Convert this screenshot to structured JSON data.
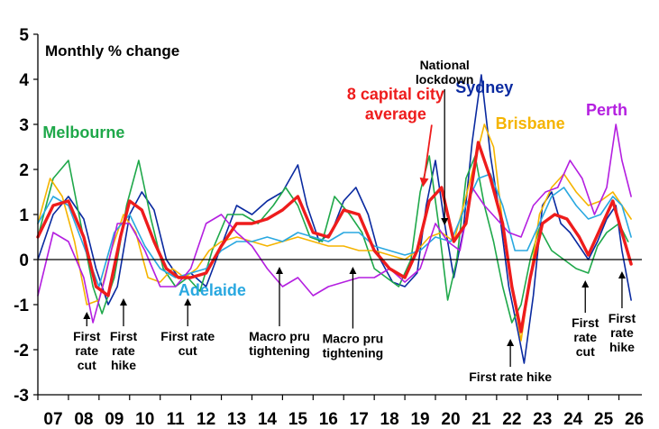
{
  "chart_data": {
    "type": "line",
    "title": "Monthly % change",
    "ylim": [
      -3,
      5
    ],
    "yticks": [
      5,
      4,
      3,
      2,
      1,
      0,
      -1,
      -2,
      -3
    ],
    "xlim": [
      2007.0,
      2026.75
    ],
    "xtick_labels": [
      "07",
      "08",
      "09",
      "10",
      "11",
      "12",
      "13",
      "14",
      "15",
      "16",
      "17",
      "18",
      "19",
      "20",
      "21",
      "22",
      "23",
      "24",
      "25",
      "26"
    ],
    "grid": false,
    "series": [
      {
        "name": "Sydney",
        "color": "#0a2aa0",
        "width": 1.6,
        "x": [
          2007.0,
          2007.5,
          2008.0,
          2008.5,
          2008.9,
          2009.3,
          2009.6,
          2010.0,
          2010.4,
          2010.8,
          2011.2,
          2011.6,
          2012.0,
          2012.5,
          2013.0,
          2013.5,
          2014.0,
          2014.5,
          2015.0,
          2015.5,
          2015.8,
          2016.2,
          2016.6,
          2017.0,
          2017.4,
          2017.8,
          2018.2,
          2018.6,
          2019.0,
          2019.4,
          2019.7,
          2020.0,
          2020.3,
          2020.6,
          2020.9,
          2021.2,
          2021.5,
          2021.8,
          2022.1,
          2022.4,
          2022.7,
          2022.9,
          2023.2,
          2023.5,
          2023.8,
          2024.1,
          2024.4,
          2024.7,
          2025.0,
          2025.3,
          2025.6,
          2025.9,
          2026.1,
          2026.4
        ],
        "y": [
          0.0,
          1.0,
          1.4,
          0.9,
          -0.2,
          -1.0,
          -0.6,
          1.0,
          1.5,
          1.1,
          0.0,
          -0.4,
          -0.3,
          -0.6,
          0.3,
          1.2,
          1.0,
          1.3,
          1.5,
          2.1,
          1.2,
          0.4,
          0.6,
          1.3,
          1.6,
          1.0,
          0.0,
          -0.5,
          -0.6,
          -0.3,
          1.2,
          2.2,
          0.8,
          -0.4,
          0.6,
          2.6,
          4.1,
          2.3,
          1.0,
          -0.6,
          -1.6,
          -2.3,
          -0.8,
          1.2,
          1.5,
          0.8,
          0.6,
          0.3,
          0.0,
          0.4,
          0.9,
          1.2,
          0.2,
          -0.9
        ]
      },
      {
        "name": "Melbourne",
        "color": "#1fa84a",
        "width": 1.6,
        "x": [
          2007.0,
          2007.5,
          2008.0,
          2008.4,
          2008.8,
          2009.1,
          2009.5,
          2009.9,
          2010.3,
          2010.7,
          2011.1,
          2011.5,
          2011.9,
          2012.3,
          2012.7,
          2013.2,
          2013.7,
          2014.2,
          2014.7,
          2015.1,
          2015.5,
          2015.9,
          2016.3,
          2016.7,
          2017.2,
          2017.6,
          2018.0,
          2018.4,
          2018.8,
          2019.2,
          2019.5,
          2019.8,
          2020.1,
          2020.4,
          2020.7,
          2021.0,
          2021.3,
          2021.6,
          2021.9,
          2022.2,
          2022.5,
          2022.8,
          2023.1,
          2023.4,
          2023.8,
          2024.2,
          2024.6,
          2025.0,
          2025.3,
          2025.6,
          2026.0,
          2026.3
        ],
        "y": [
          0.5,
          1.8,
          2.2,
          0.8,
          -0.6,
          -1.2,
          -0.4,
          1.2,
          2.2,
          0.9,
          -0.2,
          -0.6,
          -0.4,
          -0.7,
          0.2,
          1.0,
          1.0,
          0.8,
          1.2,
          1.6,
          1.2,
          0.5,
          0.4,
          1.4,
          1.0,
          0.6,
          -0.2,
          -0.4,
          -0.6,
          0.0,
          1.5,
          2.3,
          0.8,
          -0.9,
          0.0,
          1.8,
          2.3,
          1.2,
          0.4,
          -0.6,
          -1.4,
          -1.0,
          0.0,
          0.7,
          0.2,
          0.0,
          -0.2,
          -0.3,
          0.3,
          0.6,
          0.8,
          0.4
        ]
      },
      {
        "name": "Brisbane",
        "color": "#f5b400",
        "width": 1.6,
        "x": [
          2007.0,
          2007.4,
          2007.8,
          2008.2,
          2008.6,
          2009.0,
          2009.4,
          2009.8,
          2010.2,
          2010.6,
          2011.0,
          2011.4,
          2011.8,
          2012.2,
          2012.6,
          2013.0,
          2013.5,
          2014.0,
          2014.5,
          2015.0,
          2015.5,
          2016.0,
          2016.5,
          2017.0,
          2017.5,
          2018.0,
          2018.5,
          2019.0,
          2019.4,
          2019.8,
          2020.2,
          2020.6,
          2021.0,
          2021.3,
          2021.6,
          2021.9,
          2022.2,
          2022.5,
          2022.8,
          2023.1,
          2023.4,
          2023.8,
          2024.2,
          2024.6,
          2025.0,
          2025.4,
          2025.8,
          2026.1,
          2026.4
        ],
        "y": [
          0.8,
          1.8,
          1.4,
          0.4,
          -1.0,
          -0.9,
          0.2,
          1.0,
          0.6,
          -0.4,
          -0.5,
          -0.2,
          -0.4,
          -0.2,
          0.2,
          0.4,
          0.5,
          0.4,
          0.3,
          0.4,
          0.5,
          0.4,
          0.3,
          0.3,
          0.2,
          0.2,
          0.1,
          0.0,
          0.2,
          0.5,
          0.6,
          0.4,
          1.4,
          2.2,
          3.0,
          2.5,
          0.8,
          -0.6,
          -1.8,
          -0.4,
          1.0,
          1.6,
          1.9,
          1.5,
          1.2,
          1.3,
          1.5,
          1.2,
          0.9
        ]
      },
      {
        "name": "Adelaide",
        "color": "#29a8e0",
        "width": 1.6,
        "x": [
          2007.0,
          2007.5,
          2008.0,
          2008.5,
          2009.0,
          2009.5,
          2010.0,
          2010.5,
          2011.0,
          2011.5,
          2012.0,
          2012.5,
          2013.0,
          2013.5,
          2014.0,
          2014.5,
          2015.0,
          2015.5,
          2016.0,
          2016.5,
          2017.0,
          2017.5,
          2018.0,
          2018.5,
          2019.0,
          2019.5,
          2020.0,
          2020.5,
          2021.0,
          2021.4,
          2021.8,
          2022.2,
          2022.6,
          2023.0,
          2023.4,
          2023.8,
          2024.2,
          2024.6,
          2025.0,
          2025.4,
          2025.8,
          2026.1,
          2026.4
        ],
        "y": [
          0.8,
          1.4,
          1.2,
          0.3,
          -0.6,
          0.6,
          1.0,
          0.3,
          -0.2,
          -0.4,
          -0.3,
          -0.2,
          0.2,
          0.4,
          0.4,
          0.5,
          0.4,
          0.6,
          0.5,
          0.4,
          0.6,
          0.6,
          0.3,
          0.2,
          0.1,
          0.2,
          0.5,
          0.4,
          1.2,
          1.8,
          1.9,
          1.2,
          0.2,
          0.2,
          0.8,
          1.4,
          1.6,
          1.2,
          0.9,
          1.0,
          1.4,
          1.2,
          0.5
        ]
      },
      {
        "name": "Perth",
        "color": "#b41fe0",
        "width": 1.6,
        "x": [
          2007.0,
          2007.5,
          2008.0,
          2008.5,
          2008.8,
          2009.2,
          2009.6,
          2010.0,
          2010.5,
          2011.0,
          2011.5,
          2012.0,
          2012.5,
          2013.0,
          2013.5,
          2014.0,
          2014.5,
          2015.0,
          2015.5,
          2016.0,
          2016.5,
          2017.0,
          2017.5,
          2018.0,
          2018.5,
          2019.0,
          2019.5,
          2020.0,
          2020.4,
          2020.8,
          2021.2,
          2021.6,
          2022.0,
          2022.4,
          2022.8,
          2023.2,
          2023.6,
          2024.0,
          2024.4,
          2024.8,
          2025.2,
          2025.6,
          2025.9,
          2026.1,
          2026.4
        ],
        "y": [
          -0.8,
          0.6,
          0.4,
          -0.4,
          -1.4,
          -0.4,
          0.8,
          0.8,
          0.2,
          -0.6,
          -0.6,
          -0.2,
          0.8,
          1.0,
          0.6,
          0.3,
          -0.2,
          -0.6,
          -0.4,
          -0.8,
          -0.6,
          -0.5,
          -0.4,
          -0.4,
          -0.2,
          -0.5,
          -0.2,
          0.8,
          0.4,
          0.2,
          1.6,
          1.2,
          0.9,
          0.6,
          0.5,
          1.2,
          1.5,
          1.6,
          2.2,
          1.8,
          1.0,
          1.6,
          3.0,
          2.2,
          1.4
        ]
      },
      {
        "name": "8 capital city average",
        "color": "#ee1c1c",
        "width": 3.4,
        "x": [
          2007.0,
          2007.5,
          2008.0,
          2008.5,
          2008.9,
          2009.3,
          2009.7,
          2010.0,
          2010.4,
          2010.8,
          2011.2,
          2011.6,
          2012.0,
          2012.5,
          2013.0,
          2013.5,
          2014.0,
          2014.5,
          2015.0,
          2015.5,
          2016.0,
          2016.5,
          2017.0,
          2017.5,
          2018.0,
          2018.5,
          2019.0,
          2019.4,
          2019.8,
          2020.2,
          2020.6,
          2021.0,
          2021.4,
          2021.8,
          2022.2,
          2022.5,
          2022.8,
          2023.1,
          2023.5,
          2023.9,
          2024.3,
          2024.7,
          2025.0,
          2025.4,
          2025.8,
          2026.1,
          2026.4
        ],
        "y": [
          0.5,
          1.2,
          1.3,
          0.5,
          -0.6,
          -0.8,
          0.5,
          1.3,
          1.1,
          0.4,
          -0.2,
          -0.4,
          -0.4,
          -0.3,
          0.3,
          0.8,
          0.8,
          0.9,
          1.1,
          1.4,
          0.6,
          0.5,
          1.1,
          1.0,
          0.2,
          -0.2,
          -0.4,
          0.2,
          1.3,
          1.6,
          0.4,
          0.8,
          2.6,
          1.8,
          0.8,
          -0.6,
          -1.6,
          -0.4,
          0.8,
          1.0,
          0.9,
          0.5,
          0.1,
          0.7,
          1.3,
          0.6,
          -0.1
        ]
      }
    ],
    "labels": [
      {
        "text": "Melbourne",
        "color": "#1fa84a",
        "data_x": 2008.5,
        "data_y": 2.7
      },
      {
        "text": "Sydney",
        "color": "#0a2aa0",
        "data_x": 2021.6,
        "data_y": 3.7
      },
      {
        "text": "Brisbane",
        "color": "#f5b400",
        "data_x": 2023.1,
        "data_y": 2.9
      },
      {
        "text": "Perth",
        "color": "#b41fe0",
        "data_x": 2025.6,
        "data_y": 3.2
      },
      {
        "text": "Adelaide",
        "color": "#29a8e0",
        "data_x": 2012.7,
        "data_y": -0.8
      },
      {
        "text": "8 capital city average",
        "color": "#ee1c1c",
        "lines": [
          "8 capital city",
          "average"
        ],
        "data_x": 2018.7,
        "data_y": 3.55
      }
    ],
    "annotations": [
      {
        "lines": [
          "National",
          "lockdown"
        ],
        "data_x": 2020.3,
        "text_y": 4.22,
        "arrow_to": [
          2020.3,
          0.8
        ]
      },
      {
        "lines": [
          "First",
          "rate",
          "cut"
        ],
        "data_x": 2008.6,
        "text_y": -1.8,
        "arrow_to": [
          2008.6,
          -1.2
        ]
      },
      {
        "lines": [
          "First",
          "rate",
          "hike"
        ],
        "data_x": 2009.8,
        "text_y": -1.8,
        "arrow_to": [
          2009.8,
          -0.9
        ]
      },
      {
        "lines": [
          "First rate",
          "cut"
        ],
        "data_x": 2011.9,
        "text_y": -1.8,
        "arrow_to": [
          2011.9,
          -0.9
        ]
      },
      {
        "lines": [
          "Macro pru",
          "tightening"
        ],
        "data_x": 2014.9,
        "text_y": -1.8,
        "arrow_to": [
          2014.9,
          -0.2
        ]
      },
      {
        "lines": [
          "Macro pru",
          "tightening"
        ],
        "data_x": 2017.3,
        "text_y": -1.85,
        "arrow_to": [
          2017.3,
          -0.2
        ]
      },
      {
        "lines": [
          "First rate hike"
        ],
        "data_x": 2022.45,
        "text_y": -2.7,
        "arrow_to": [
          2022.45,
          -1.8
        ]
      },
      {
        "lines": [
          "First",
          "rate",
          "cut"
        ],
        "data_x": 2024.9,
        "text_y": -1.5,
        "arrow_to": [
          2024.9,
          -0.5
        ]
      },
      {
        "lines": [
          "First",
          "rate",
          "hike"
        ],
        "data_x": 2026.1,
        "text_y": -1.4,
        "arrow_to": [
          2026.1,
          -0.3
        ]
      }
    ]
  }
}
